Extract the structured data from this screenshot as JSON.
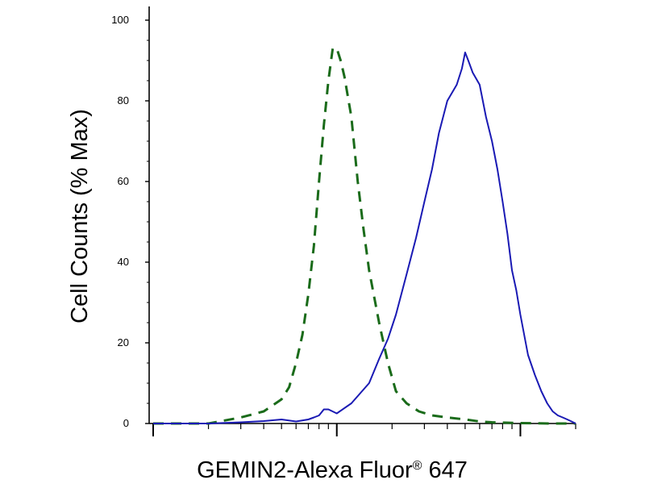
{
  "chart_data": {
    "type": "line",
    "title": "",
    "xlabel": "GEMIN2-Alexa Fluor",
    "xlabel_sup": "®",
    "xlabel_suffix": " 647",
    "ylabel": "Cell Counts (% Max)",
    "x_scale": "log",
    "xlim": [
      1,
      200
    ],
    "ylim": [
      0,
      100
    ],
    "y_ticks": [
      0,
      20,
      40,
      60,
      80,
      100
    ],
    "y_tick_labels": [
      "0",
      "20",
      "40",
      "60",
      "80",
      "100"
    ],
    "x_major_ticks": [
      1,
      10,
      100
    ],
    "x_tick_labels_visible": false,
    "grid": false,
    "legend": "none",
    "series": [
      {
        "color": "#1a6b1a",
        "style": "dashed",
        "x": [
          1,
          1.5,
          2,
          3,
          4,
          5,
          5.5,
          6,
          6.5,
          7,
          7.5,
          8,
          8.5,
          9,
          9.5,
          10,
          10.5,
          11,
          12,
          13,
          14,
          15,
          17,
          19,
          21,
          24,
          28,
          33,
          40,
          50,
          60,
          70,
          100,
          150,
          200
        ],
        "y": [
          0,
          0,
          0,
          1.5,
          3,
          6,
          9,
          15,
          22,
          32,
          44,
          60,
          74,
          85,
          93,
          93,
          90,
          86,
          76,
          60,
          48,
          38,
          25,
          15,
          8,
          5,
          3,
          2,
          1.5,
          1,
          0.5,
          0.3,
          0.1,
          0,
          0
        ]
      },
      {
        "color": "#1a1ab4",
        "style": "solid",
        "x": [
          1,
          2,
          3,
          4,
          5,
          6,
          7,
          7.5,
          8,
          8.5,
          9,
          10,
          12,
          15,
          17,
          19,
          21,
          24,
          27,
          30,
          33,
          36,
          40,
          45,
          48,
          50,
          52,
          55,
          60,
          65,
          70,
          75,
          80,
          85,
          90,
          95,
          100,
          110,
          120,
          130,
          140,
          150,
          160,
          170,
          180,
          190,
          200
        ],
        "y": [
          0,
          0,
          0.3,
          0.6,
          1,
          0.5,
          1,
          1.5,
          2,
          3.5,
          3.5,
          2.5,
          5,
          10,
          16,
          21,
          27,
          37,
          46,
          55,
          63,
          72,
          80,
          84,
          88,
          92,
          90,
          87,
          84,
          76,
          70,
          63,
          55,
          47,
          38,
          33,
          27,
          17,
          12,
          8,
          5,
          3,
          2,
          1.5,
          1,
          0.5,
          0
        ]
      }
    ]
  }
}
